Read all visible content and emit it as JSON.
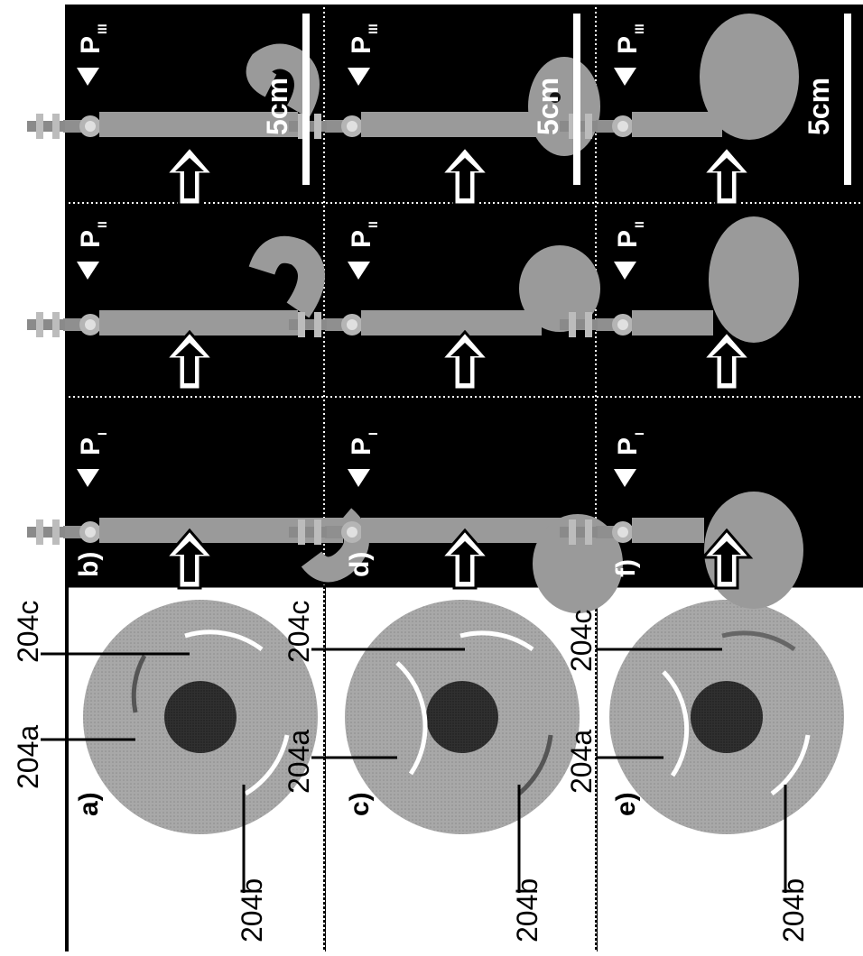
{
  "panel_labels": [
    "a)",
    "b)",
    "c)",
    "d)",
    "e)",
    "f)"
  ],
  "ring_labels": {
    "ring_a": "204a",
    "ring_b": "204b",
    "ring_c": "204c"
  },
  "pressure_labels": {
    "p1": "P",
    "p1_sub": "I",
    "p2": "P",
    "p2_sub": "II",
    "p3": "P",
    "p3_sub": "III"
  },
  "scale_bar_label": "5cm",
  "colors": {
    "photo_background": "#000000",
    "actuator_gray": "#9a9a9a",
    "ring_outer": "#b4b4b4",
    "ring_inner": "#2a2a2a",
    "active_segment": "#ffffff",
    "inactive_segment": "#555555"
  },
  "rows": [
    {
      "panel_left": "a)",
      "panel_right": "b)",
      "active": [
        "c",
        "b"
      ],
      "inactive": [
        "a"
      ]
    },
    {
      "panel_left": "c)",
      "panel_right": "d)",
      "active": [
        "a",
        "c"
      ],
      "inactive": [
        "b"
      ]
    },
    {
      "panel_left": "e)",
      "panel_right": "f)",
      "active": [
        "a",
        "b"
      ],
      "inactive": [
        "c"
      ]
    }
  ]
}
